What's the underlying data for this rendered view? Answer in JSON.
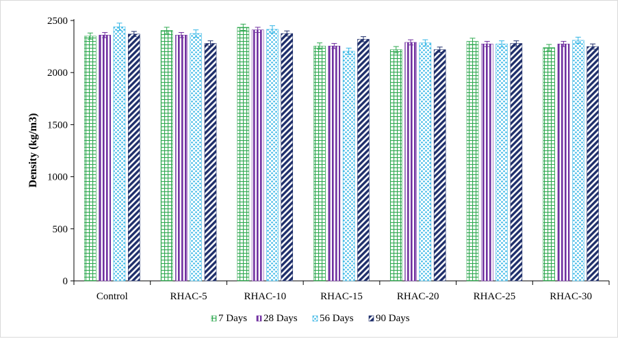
{
  "chart_data": {
    "type": "bar",
    "title": "",
    "xlabel": "",
    "ylabel": "Density (kg/m3)",
    "ylim": [
      0,
      2500
    ],
    "yticks": [
      0,
      500,
      1000,
      1500,
      2000,
      2500
    ],
    "categories": [
      "Control",
      "RHAC-5",
      "RHAC-10",
      "RHAC-15",
      "RHAC-20",
      "RHAC-25",
      "RHAC-30"
    ],
    "series": [
      {
        "name": "7 Days",
        "color": "#2ea84f",
        "pattern": "grid",
        "values": [
          2350,
          2405,
          2435,
          2255,
          2220,
          2300,
          2240
        ],
        "errors": [
          30,
          30,
          30,
          30,
          30,
          30,
          30
        ]
      },
      {
        "name": "28 Days",
        "color": "#7030a0",
        "pattern": "vertical-stripes",
        "values": [
          2360,
          2360,
          2410,
          2255,
          2290,
          2275,
          2275
        ],
        "errors": [
          25,
          25,
          25,
          25,
          25,
          25,
          25
        ]
      },
      {
        "name": "56 Days",
        "color": "#33b5e5",
        "pattern": "dots",
        "values": [
          2440,
          2375,
          2415,
          2205,
          2285,
          2275,
          2310
        ],
        "errors": [
          35,
          35,
          35,
          30,
          30,
          30,
          30
        ]
      },
      {
        "name": "90 Days",
        "color": "#1f2f6b",
        "pattern": "diagonal-stripes",
        "values": [
          2370,
          2280,
          2375,
          2320,
          2220,
          2280,
          2250
        ],
        "errors": [
          25,
          25,
          25,
          25,
          25,
          25,
          25
        ]
      }
    ],
    "grid": false,
    "legend_position": "bottom"
  }
}
